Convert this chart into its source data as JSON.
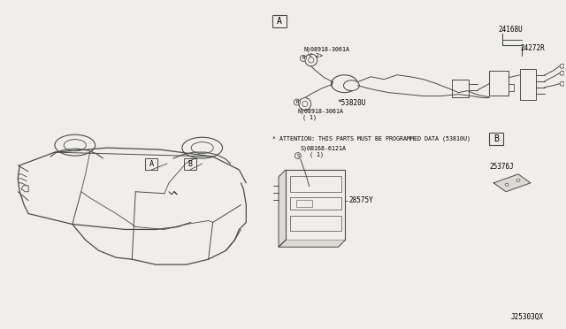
{
  "bg_color": "#f0eeea",
  "fig_width": 6.4,
  "fig_height": 3.72,
  "dpi": 100,
  "line_color": "#4a4a4a",
  "light_line": "#888888",
  "diagram_id": "J25303QX",
  "part_label_24168U": "24168U",
  "part_label_24272R": "24272R",
  "part_label_53820U": "*53820U",
  "part_label_08918_2": "N)08918-3061A\n< 2>",
  "part_label_08918_1": "N)08918-3061A\n( 1)",
  "part_label_0B168": "S)0B168-6121A\n( 1)",
  "part_label_28575Y": "28575Y",
  "part_label_25376J": "25376J",
  "attention": "* ATTENTION: THIS PARTS MUST BE PROGRAMMED DATA (53810U)",
  "box_A_label": "A",
  "box_B_label": "B"
}
